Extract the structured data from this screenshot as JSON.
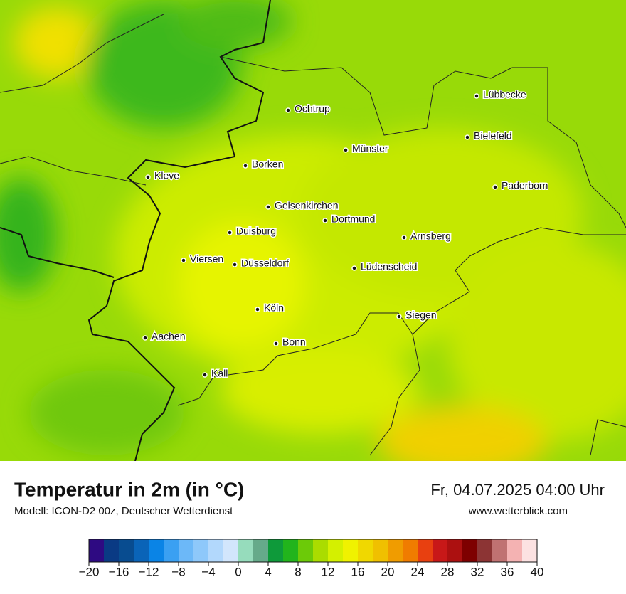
{
  "header": {
    "title": "Temperatur in 2m (in °C)",
    "subtitle": "Modell: ICON-D2 00z, Deutscher Wetterdienst",
    "datetime": "Fr, 04.07.2025 04:00 Uhr",
    "website": "www.wetterblick.com"
  },
  "map": {
    "cities": [
      "Ochtrup",
      "Lübbecke",
      "Bielefeld",
      "Münster",
      "Borken",
      "Kleve",
      "Paderborn",
      "Gelsenkirchen",
      "Dortmund",
      "Duisburg",
      "Arnsberg",
      "Viersen",
      "Düsseldorf",
      "Lüdenscheid",
      "Köln",
      "Siegen",
      "Aachen",
      "Bonn",
      "Kall"
    ]
  },
  "colorbar": {
    "lim": [
      -20,
      40
    ],
    "colors": [
      "#2e0a82",
      "#0a3a84",
      "#084c90",
      "#0a64b8",
      "#0a84e6",
      "#3aa0f2",
      "#6cb8f8",
      "#8ec8fa",
      "#b2d8fc",
      "#d2e6fc",
      "#96dcbc",
      "#66aa8a",
      "#0e9a3a",
      "#22b41c",
      "#6cca08",
      "#aadc00",
      "#d4f000",
      "#f0f200",
      "#f0d800",
      "#f0c000",
      "#f09c00",
      "#f07c00",
      "#e84010",
      "#c81818",
      "#ac1010",
      "#7e0000",
      "#8c3434",
      "#c07272",
      "#f4b2b2",
      "#fce2e2"
    ],
    "ticks": [
      {
        "value": -20,
        "label": "−20"
      },
      {
        "value": -16,
        "label": "−16"
      },
      {
        "value": -12,
        "label": "−12"
      },
      {
        "value": -8,
        "label": "−8"
      },
      {
        "value": -4,
        "label": "−4"
      },
      0,
      4,
      8,
      12,
      16,
      20,
      24,
      28,
      32,
      36,
      40
    ]
  }
}
